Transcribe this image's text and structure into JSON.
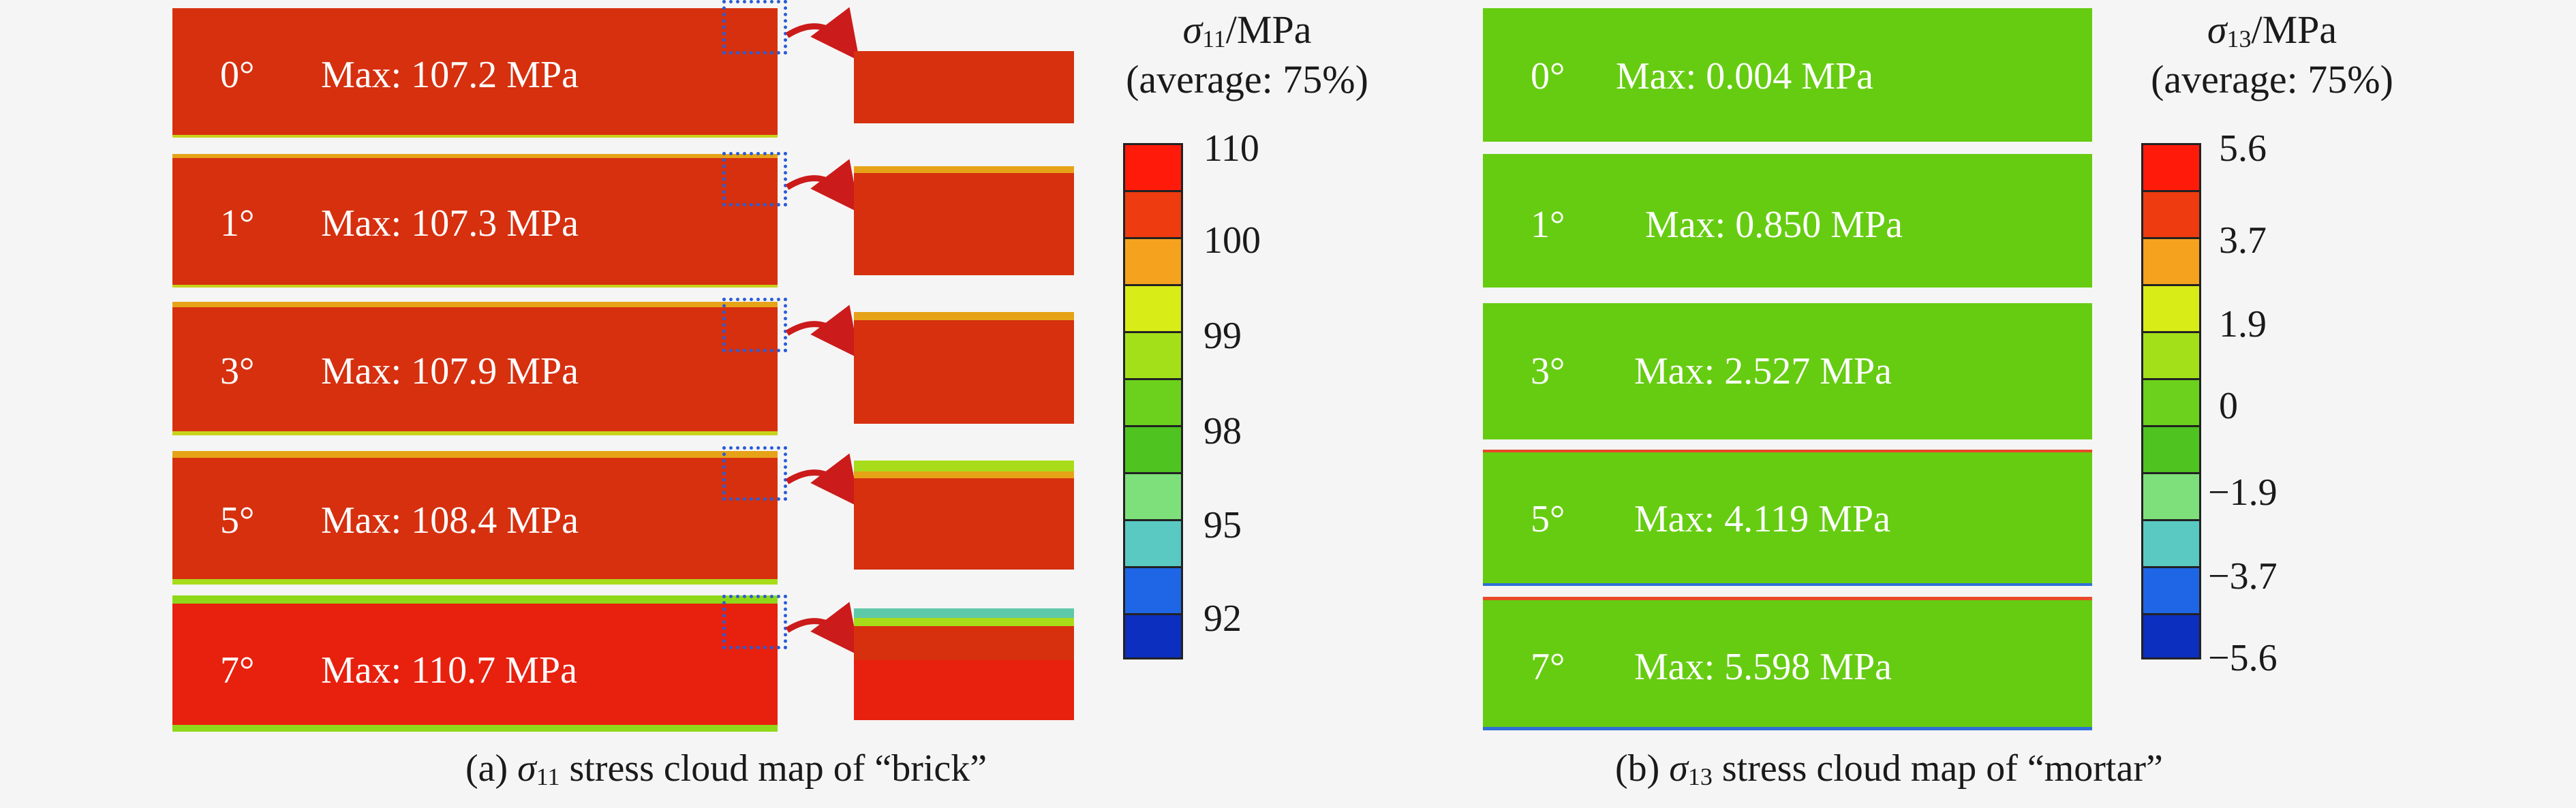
{
  "brick": {
    "strips": [
      {
        "angle": "0°",
        "max": "Max: 107.2 MPa"
      },
      {
        "angle": "1°",
        "max": "Max: 107.3 MPa"
      },
      {
        "angle": "3°",
        "max": "Max: 107.9 MPa"
      },
      {
        "angle": "5°",
        "max": "Max: 108.4 MPa"
      },
      {
        "angle": "7°",
        "max": "Max: 110.7 MPa"
      }
    ],
    "legend": {
      "symbol": "σ",
      "subscript": "11",
      "unit": "/MPa",
      "average": "(average: 75%)",
      "ticks": [
        "110",
        "100",
        "99",
        "98",
        "95",
        "92"
      ]
    },
    "caption": {
      "prefix": "(a) ",
      "symbol": "σ",
      "subscript": "11",
      "text": " stress cloud map of  “brick”"
    }
  },
  "mortar": {
    "strips": [
      {
        "angle": "0°",
        "max": "Max: 0.004 MPa"
      },
      {
        "angle": "1°",
        "max": "Max: 0.850 MPa"
      },
      {
        "angle": "3°",
        "max": "Max: 2.527 MPa"
      },
      {
        "angle": "5°",
        "max": "Max: 4.119 MPa"
      },
      {
        "angle": "7°",
        "max": "Max: 5.598 MPa"
      }
    ],
    "legend": {
      "symbol": "σ",
      "subscript": "13",
      "unit": "/MPa",
      "average": "(average: 75%)",
      "ticks": [
        "5.6",
        "3.7",
        "1.9",
        "0",
        "−1.9",
        "−3.7",
        "−5.6"
      ]
    },
    "caption": {
      "prefix": "(b) ",
      "symbol": "σ",
      "subscript": "13",
      "text": " stress cloud map of  “mortar”"
    }
  },
  "colors": {
    "brick_red": "#d6300f",
    "brick_red_7": "#e8200e",
    "mortar_green": "#66cc11",
    "zoom_blue": "#2a5dd6",
    "arrow_red": "#cc1b1b",
    "colorbar": [
      "#ff1a0a",
      "#ee3b0f",
      "#f5a21e",
      "#d8ec18",
      "#a4e01a",
      "#6bd11c",
      "#4fc31f",
      "#7de07a",
      "#59c9c2",
      "#1f66e6",
      "#0c2fbf"
    ]
  }
}
